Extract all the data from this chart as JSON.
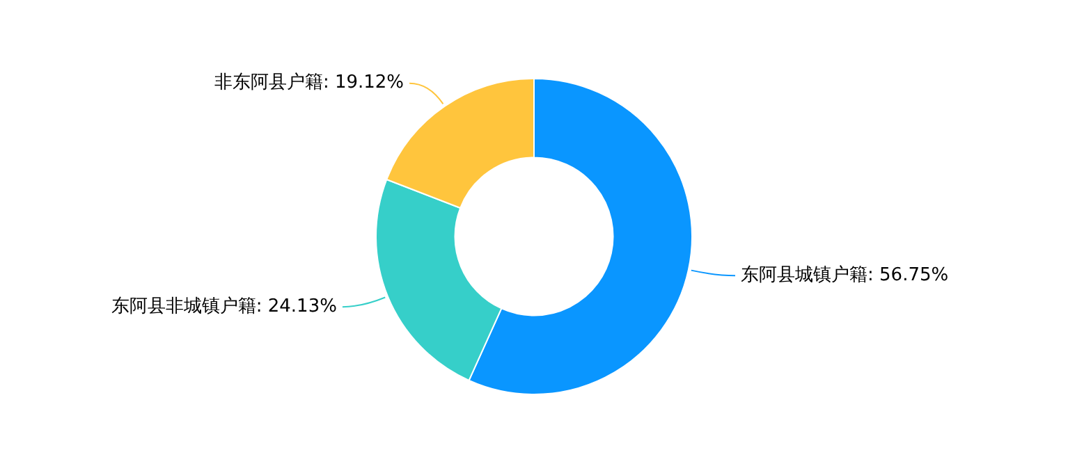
{
  "chart_data": {
    "type": "donut",
    "categories": [
      "东阿县城镇户籍",
      "东阿县非城镇户籍",
      "非东阿县户籍"
    ],
    "values": [
      56.75,
      24.13,
      19.12
    ],
    "colors": [
      "#0a96ff",
      "#36cfc9",
      "#ffc53d"
    ],
    "value_labels": [
      "56.75%",
      "24.13%",
      "19.12%"
    ],
    "legend": false
  }
}
